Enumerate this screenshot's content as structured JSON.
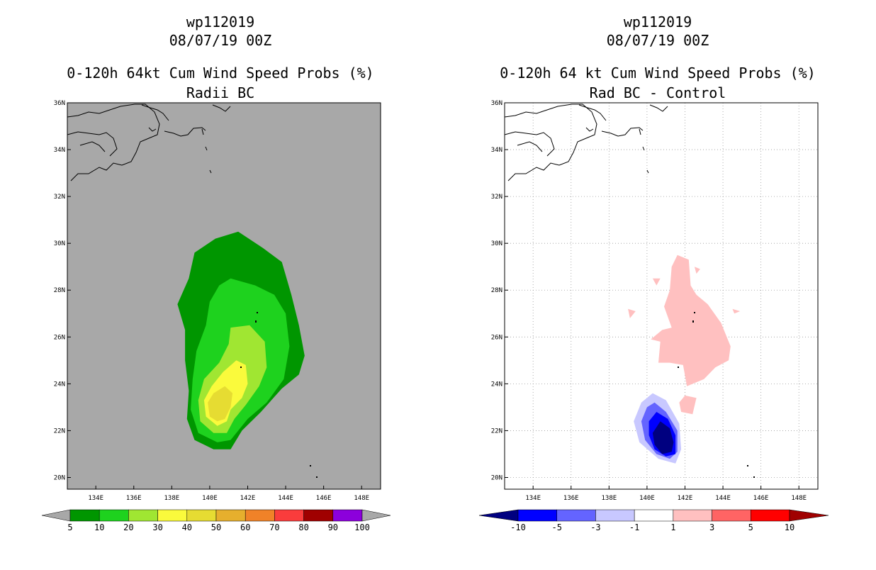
{
  "colors": {
    "land_gray": "#a8a8a8",
    "left_levels": [
      "#009600",
      "#1ed21e",
      "#a0e632",
      "#fafa3c",
      "#e6dc32",
      "#e6af2d",
      "#f08228",
      "#fa3c3c",
      "#a00000",
      "#8c00dc"
    ],
    "right_levels": [
      "#000080",
      "#0000ff",
      "#6464ff",
      "#c8c8ff",
      "#ffffff",
      "#ffc0c0",
      "#ff6464",
      "#ff0000",
      "#a00000"
    ]
  },
  "chart_data": [
    {
      "type": "heatmap",
      "name": "left-panel",
      "title_lines": [
        "wp112019",
        "08/07/19 00Z",
        "0-120h 64kt Cum Wind Speed Probs (%)",
        "Radii BC"
      ],
      "x_ticks": [
        "134E",
        "136E",
        "138E",
        "140E",
        "142E",
        "144E",
        "146E",
        "148E"
      ],
      "x_tick_values": [
        134,
        136,
        138,
        140,
        142,
        144,
        146,
        148
      ],
      "y_ticks": [
        "20N",
        "22N",
        "24N",
        "26N",
        "28N",
        "30N",
        "32N",
        "34N",
        "36N"
      ],
      "y_tick_values": [
        20,
        22,
        24,
        26,
        28,
        30,
        32,
        34,
        36
      ],
      "xlim": [
        132.5,
        149
      ],
      "ylim": [
        19.5,
        36
      ],
      "grid": false,
      "colorbar_labels": [
        "5",
        "10",
        "20",
        "30",
        "40",
        "50",
        "60",
        "70",
        "80",
        "90",
        "100"
      ],
      "contours": [
        {
          "level": 5,
          "points": [
            [
              141.5,
              30.5
            ],
            [
              142.8,
              29.8
            ],
            [
              143.8,
              29.2
            ],
            [
              144.3,
              27.8
            ],
            [
              144.7,
              26.5
            ],
            [
              145.0,
              25.2
            ],
            [
              144.7,
              24.4
            ],
            [
              143.8,
              23.8
            ],
            [
              142.7,
              22.8
            ],
            [
              141.7,
              22.0
            ],
            [
              141.1,
              21.2
            ],
            [
              140.2,
              21.2
            ],
            [
              139.2,
              21.6
            ],
            [
              138.8,
              22.5
            ],
            [
              138.9,
              23.7
            ],
            [
              138.7,
              25.0
            ],
            [
              138.7,
              26.3
            ],
            [
              138.3,
              27.4
            ],
            [
              138.9,
              28.5
            ],
            [
              139.2,
              29.6
            ],
            [
              140.3,
              30.2
            ]
          ]
        },
        {
          "level": 10,
          "points": [
            [
              141.1,
              28.5
            ],
            [
              142.4,
              28.2
            ],
            [
              143.4,
              27.8
            ],
            [
              144.0,
              27.0
            ],
            [
              144.2,
              25.6
            ],
            [
              143.9,
              24.2
            ],
            [
              143.0,
              23.2
            ],
            [
              142.0,
              22.5
            ],
            [
              141.1,
              21.6
            ],
            [
              140.4,
              21.5
            ],
            [
              139.4,
              21.9
            ],
            [
              139.0,
              22.9
            ],
            [
              139.1,
              24.2
            ],
            [
              139.3,
              25.4
            ],
            [
              139.8,
              26.5
            ],
            [
              140.0,
              27.5
            ],
            [
              140.5,
              28.2
            ]
          ]
        },
        {
          "level": 20,
          "points": [
            [
              141.1,
              26.4
            ],
            [
              142.1,
              26.5
            ],
            [
              142.9,
              25.8
            ],
            [
              143.0,
              24.7
            ],
            [
              142.6,
              23.9
            ],
            [
              141.9,
              23.1
            ],
            [
              141.3,
              22.5
            ],
            [
              140.9,
              21.9
            ],
            [
              140.2,
              21.9
            ],
            [
              139.5,
              22.4
            ],
            [
              139.4,
              23.3
            ],
            [
              139.7,
              24.2
            ],
            [
              140.5,
              24.9
            ],
            [
              141.0,
              25.7
            ]
          ]
        },
        {
          "level": 30,
          "points": [
            [
              141.4,
              25.0
            ],
            [
              141.9,
              24.8
            ],
            [
              142.0,
              24.0
            ],
            [
              141.7,
              23.4
            ],
            [
              141.1,
              22.9
            ],
            [
              140.9,
              22.4
            ],
            [
              140.4,
              22.2
            ],
            [
              139.8,
              22.6
            ],
            [
              139.7,
              23.3
            ],
            [
              140.1,
              23.9
            ],
            [
              140.7,
              24.5
            ]
          ]
        },
        {
          "level": 40,
          "points": [
            [
              140.8,
              23.9
            ],
            [
              141.2,
              23.6
            ],
            [
              141.1,
              23.0
            ],
            [
              140.8,
              22.5
            ],
            [
              140.4,
              22.4
            ],
            [
              140.0,
              22.6
            ],
            [
              139.9,
              23.2
            ],
            [
              140.2,
              23.6
            ]
          ]
        }
      ]
    },
    {
      "type": "heatmap",
      "name": "right-panel",
      "title_lines": [
        "wp112019",
        "08/07/19 00Z",
        "0-120h 64 kt Cum Wind Speed Probs (%)",
        "Rad BC - Control"
      ],
      "x_ticks": [
        "134E",
        "136E",
        "138E",
        "140E",
        "142E",
        "144E",
        "146E",
        "148E"
      ],
      "x_tick_values": [
        134,
        136,
        138,
        140,
        142,
        144,
        146,
        148
      ],
      "y_ticks": [
        "20N",
        "22N",
        "24N",
        "26N",
        "28N",
        "30N",
        "32N",
        "34N",
        "36N"
      ],
      "y_tick_values": [
        20,
        22,
        24,
        26,
        28,
        30,
        32,
        34,
        36
      ],
      "xlim": [
        132.5,
        149
      ],
      "ylim": [
        19.5,
        36
      ],
      "grid": true,
      "colorbar_labels": [
        "-10",
        "-5",
        "-3",
        "-1",
        "1",
        "3",
        "5",
        "10"
      ],
      "contours": [
        {
          "level": 1,
          "points": [
            [
              141.6,
              29.5
            ],
            [
              142.2,
              29.3
            ],
            [
              142.3,
              28.2
            ],
            [
              142.6,
              27.8
            ],
            [
              143.2,
              27.4
            ],
            [
              143.9,
              26.6
            ],
            [
              144.4,
              25.6
            ],
            [
              144.3,
              25.0
            ],
            [
              143.6,
              24.7
            ],
            [
              143.0,
              24.2
            ],
            [
              142.1,
              23.9
            ],
            [
              141.9,
              24.8
            ],
            [
              141.2,
              24.9
            ],
            [
              140.6,
              24.9
            ],
            [
              140.7,
              25.8
            ],
            [
              140.2,
              25.9
            ],
            [
              140.8,
              26.3
            ],
            [
              141.3,
              26.4
            ],
            [
              140.9,
              27.3
            ],
            [
              141.2,
              28.0
            ],
            [
              141.3,
              29.0
            ]
          ]
        },
        {
          "level": 1,
          "points": [
            [
              142.0,
              23.5
            ],
            [
              142.6,
              23.4
            ],
            [
              142.4,
              22.7
            ],
            [
              141.8,
              22.8
            ],
            [
              141.7,
              23.2
            ]
          ]
        },
        {
          "level": 1,
          "points": [
            [
              140.3,
              28.5
            ],
            [
              140.7,
              28.5
            ],
            [
              140.5,
              28.2
            ]
          ]
        },
        {
          "level": 1,
          "points": [
            [
              139.0,
              27.2
            ],
            [
              139.4,
              27.1
            ],
            [
              139.1,
              26.8
            ]
          ]
        },
        {
          "level": 1,
          "points": [
            [
              144.5,
              27.2
            ],
            [
              144.9,
              27.1
            ],
            [
              144.6,
              27.0
            ]
          ]
        },
        {
          "level": 1,
          "points": [
            [
              142.5,
              29.0
            ],
            [
              142.8,
              28.9
            ],
            [
              142.6,
              28.7
            ]
          ]
        },
        {
          "level": -1,
          "points": [
            [
              140.3,
              23.6
            ],
            [
              141.0,
              23.3
            ],
            [
              141.7,
              22.3
            ],
            [
              141.8,
              21.2
            ],
            [
              141.5,
              20.6
            ],
            [
              140.6,
              20.8
            ],
            [
              139.6,
              21.5
            ],
            [
              139.3,
              22.4
            ],
            [
              139.7,
              23.2
            ]
          ]
        },
        {
          "level": -3,
          "points": [
            [
              140.4,
              23.2
            ],
            [
              141.0,
              22.8
            ],
            [
              141.6,
              22.0
            ],
            [
              141.6,
              21.1
            ],
            [
              141.2,
              20.8
            ],
            [
              140.5,
              21.0
            ],
            [
              139.9,
              21.6
            ],
            [
              139.7,
              22.4
            ],
            [
              140.0,
              23.0
            ]
          ]
        },
        {
          "level": -5,
          "points": [
            [
              140.5,
              22.8
            ],
            [
              141.1,
              22.5
            ],
            [
              141.5,
              21.8
            ],
            [
              141.5,
              21.0
            ],
            [
              141.0,
              20.9
            ],
            [
              140.4,
              21.2
            ],
            [
              140.1,
              21.8
            ],
            [
              140.1,
              22.4
            ]
          ]
        },
        {
          "level": -10,
          "points": [
            [
              140.7,
              22.4
            ],
            [
              141.2,
              22.1
            ],
            [
              141.4,
              21.5
            ],
            [
              141.3,
              21.1
            ],
            [
              140.8,
              21.0
            ],
            [
              140.4,
              21.4
            ],
            [
              140.3,
              21.9
            ]
          ]
        }
      ]
    }
  ]
}
